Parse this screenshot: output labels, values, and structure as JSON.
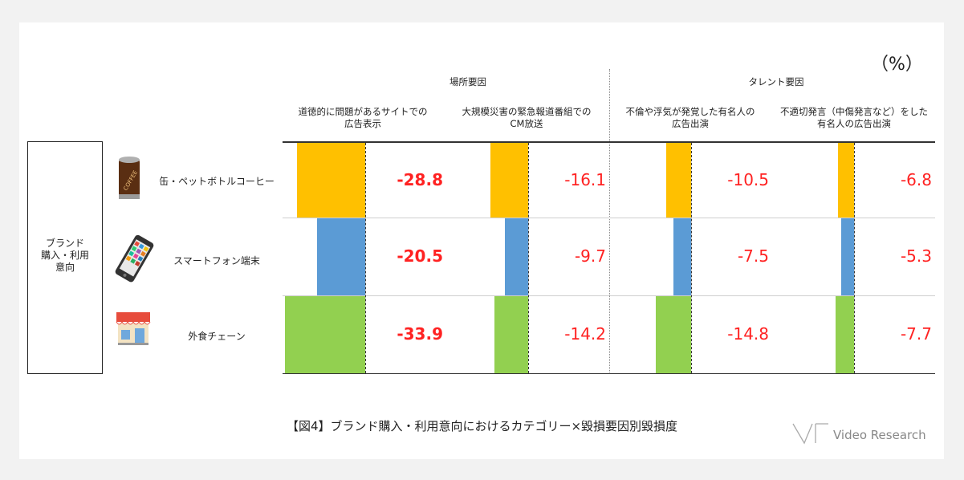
{
  "unit_label": "（%）",
  "groups": [
    {
      "title": "場所要因"
    },
    {
      "title": "タレント要因"
    }
  ],
  "brand_label": "ブランド\n購入・利用\n意向",
  "rows": [
    {
      "label": "缶・ペットボトルコーヒー",
      "icon": "coffee-can-icon"
    },
    {
      "label": "スマートフォン端末",
      "icon": "smartphone-icon"
    },
    {
      "label": "外食チェーン",
      "icon": "restaurant-icon"
    }
  ],
  "colors": {
    "row_colors": [
      "#ffc000",
      "#5b9bd5",
      "#92d050"
    ],
    "value_text": "#ff2222"
  },
  "caption": "【図4】ブランド購入・利用意向におけるカテゴリー×毀損要因別毀損度",
  "logo": "Video Research",
  "chart_data": {
    "type": "bar",
    "title": "",
    "categories": [
      "缶・ペットボトルコーヒー",
      "スマートフォン端末",
      "外食チェーン"
    ],
    "columns": [
      {
        "group": "場所要因",
        "header": [
          "道徳的に問題があるサイトでの",
          "広告表示"
        ]
      },
      {
        "group": "場所要因",
        "header": [
          "大規模災害の緊急報道番組での",
          "CM放送"
        ]
      },
      {
        "group": "タレント要因",
        "header": [
          "不倫や浮気が発覚した有名人の",
          "広告出演"
        ]
      },
      {
        "group": "タレント要因",
        "header": [
          "不適切発言（中傷発言など）をした",
          "有名人の広告出演"
        ]
      }
    ],
    "values": [
      [
        -28.8,
        -16.1,
        -10.5,
        -6.8
      ],
      [
        -20.5,
        -9.7,
        -7.5,
        -5.3
      ],
      [
        -33.9,
        -14.2,
        -14.8,
        -7.7
      ]
    ],
    "value_labels": [
      [
        "-28.8",
        "-16.1",
        "-10.5",
        "-6.8"
      ],
      [
        "-20.5",
        "-9.7",
        "-7.5",
        "-5.3"
      ],
      [
        "-33.9",
        "-14.2",
        "-14.8",
        "-7.7"
      ]
    ],
    "bold_column": 0,
    "ylabel": "",
    "xlabel": ""
  }
}
